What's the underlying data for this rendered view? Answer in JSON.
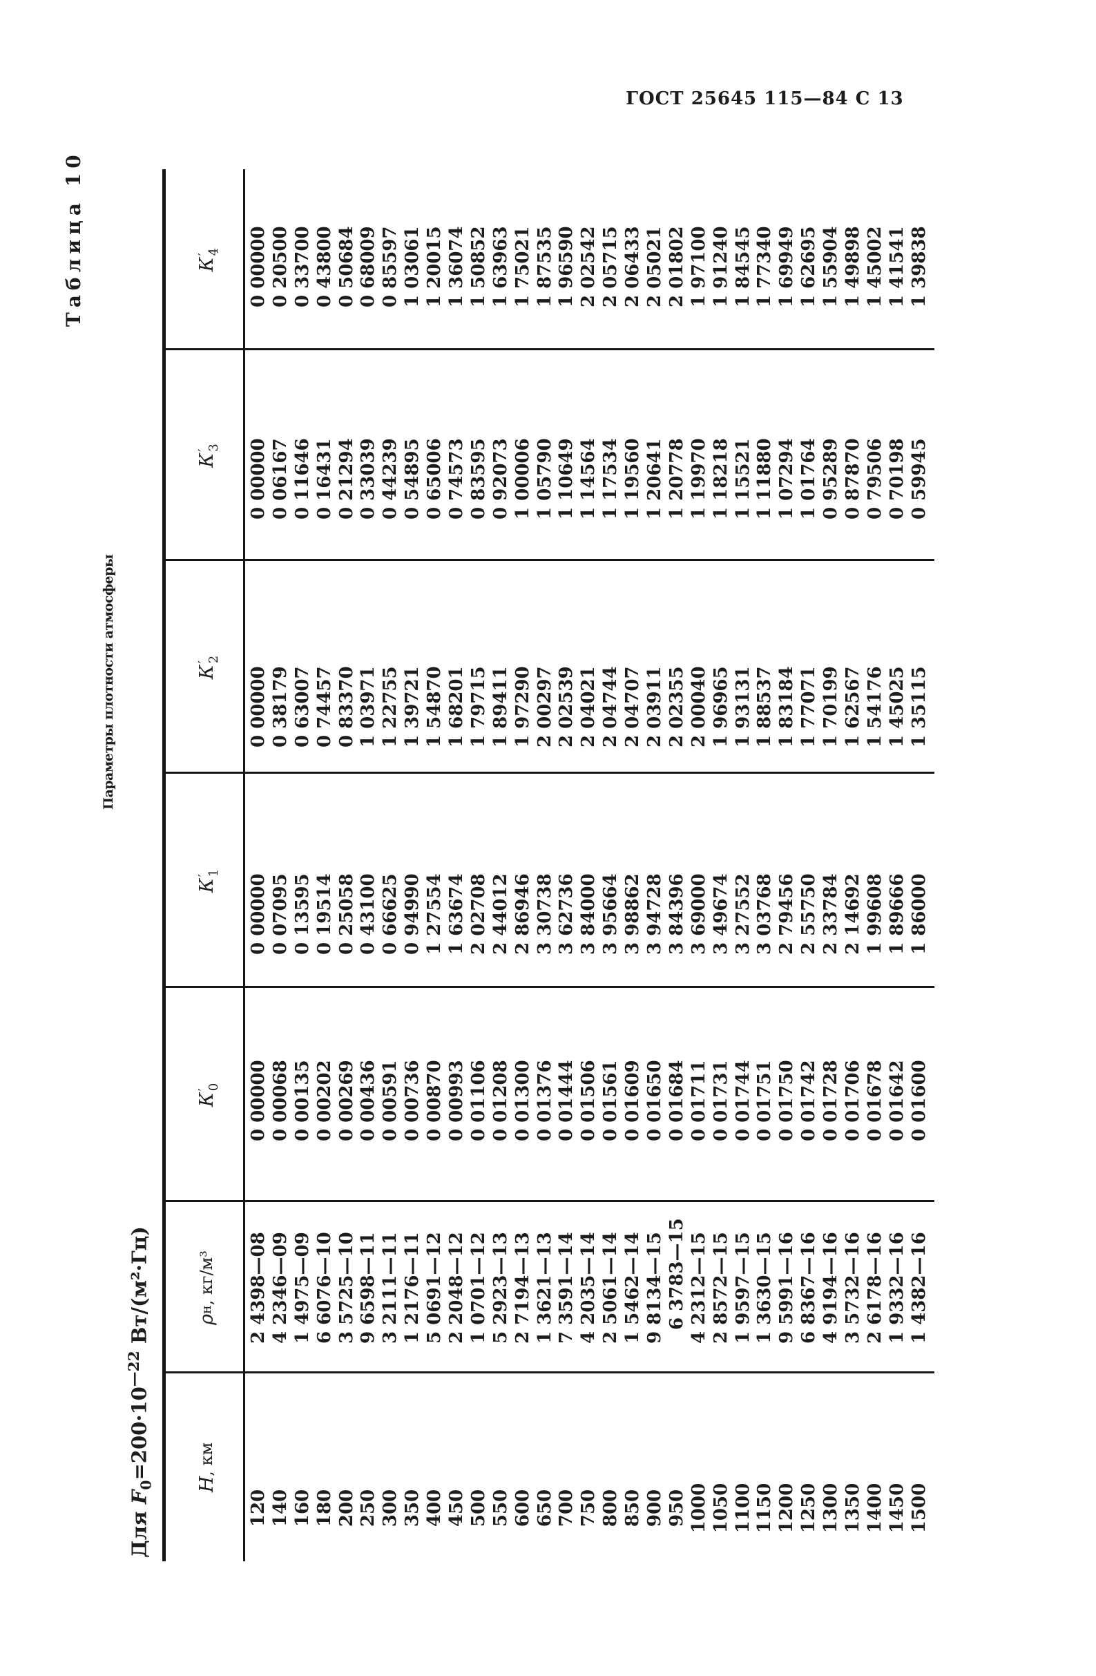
{
  "colors": {
    "paper": "#ffffff",
    "ink": "#1c1c1c"
  },
  "header": {
    "standard_ref": "ГОСТ 25645 115—84 С 13"
  },
  "table_label": "Таблица 10",
  "condition": {
    "prefix": "Для ",
    "symbol": "F",
    "symbol_sub": "0",
    "equals": "=200·10",
    "exponent": "—22",
    "unit": " Вт/(м²·Гц)"
  },
  "title": "Параметры плотности атмосферы",
  "table": {
    "columns": [
      {
        "main": "Н",
        "rest": ", км"
      },
      {
        "main": "ρ",
        "sub": "н",
        "rest": ", кг/м³"
      },
      {
        "main": "К",
        "prime": "′",
        "sub": "0"
      },
      {
        "main": "К",
        "prime": "′",
        "sub": "1"
      },
      {
        "main": "К",
        "prime": "′",
        "sub": "2"
      },
      {
        "main": "К",
        "prime": "′",
        "sub": "3"
      },
      {
        "main": "К",
        "prime": "′",
        "sub": "4"
      }
    ],
    "rows": [
      [
        "120",
        "2 4398—08",
        "0 00000",
        "0 00000",
        "0 00000",
        "0 00000",
        "0 00000"
      ],
      [
        "140",
        "4 2346—09",
        "0 00068",
        "0 07095",
        "0 38179",
        "0 06167",
        "0 20500"
      ],
      [
        "160",
        "1 4975—09",
        "0 00135",
        "0 13595",
        "0 63007",
        "0 11646",
        "0 33700"
      ],
      [
        "180",
        "6 6076—10",
        "0 00202",
        "0 19514",
        "0 74457",
        "0 16431",
        "0 43800"
      ],
      [
        "200",
        "3 5725—10",
        "0 00269",
        "0 25058",
        "0 83370",
        "0 21294",
        "0 50684"
      ],
      [
        "250",
        "9 6598—11",
        "0 00436",
        "0 43100",
        "1 03971",
        "0 33039",
        "0 68009"
      ],
      [
        "300",
        "3 2111—11",
        "0 00591",
        "0 66625",
        "1 22755",
        "0 44239",
        "0 85597"
      ],
      [
        "350",
        "1 2176—11",
        "0 00736",
        "0 94990",
        "1 39721",
        "0 54895",
        "1 03061"
      ],
      [
        "400",
        "5 0691—12",
        "0 00870",
        "1 27554",
        "1 54870",
        "0 65006",
        "1 20015"
      ],
      [
        "450",
        "2 2048—12",
        "0 00993",
        "1 63674",
        "1 68201",
        "0 74573",
        "1 36074"
      ],
      [
        "500",
        "1 0701—12",
        "0 01106",
        "2 02708",
        "1 79715",
        "0 83595",
        "1 50852"
      ],
      [
        "550",
        "5 2923—13",
        "0 01208",
        "2 44012",
        "1 89411",
        "0 92073",
        "1 63963"
      ],
      [
        "600",
        "2 7194—13",
        "0 01300",
        "2 86946",
        "1 97290",
        "1 00006",
        "1 75021"
      ],
      [
        "650",
        "1 3621—13",
        "0 01376",
        "3 30738",
        "2 00297",
        "1 05790",
        "1 87535"
      ],
      [
        "700",
        "7 3591—14",
        "0 01444",
        "3 62736",
        "2 02539",
        "1 10649",
        "1 96590"
      ],
      [
        "750",
        "4 2035—14",
        "0 01506",
        "3 84000",
        "2 04021",
        "1 14564",
        "2 02542"
      ],
      [
        "800",
        "2 5061—14",
        "0 01561",
        "3 95664",
        "2 04744",
        "1 17534",
        "2 05715"
      ],
      [
        "850",
        "1 5462—14",
        "0 01609",
        "3 98862",
        "2 04707",
        "1 19560",
        "2 06433"
      ],
      [
        "900",
        "9 8134—15",
        "0 01650",
        "3 94728",
        "2 03911",
        "1 20641",
        "2 05021"
      ],
      [
        "950",
        "6 3783—15",
        "0 01684",
        "3 84396",
        "2 02355",
        "1 20778",
        "2 01802"
      ],
      [
        "1000",
        "4 2312—15",
        "0 01711",
        "3 69000",
        "2 00040",
        "1 19970",
        "1 97100"
      ],
      [
        "1050",
        "2 8572—15",
        "0 01731",
        "3 49674",
        "1 96965",
        "1 18218",
        "1 91240"
      ],
      [
        "1100",
        "1 9597—15",
        "0 01744",
        "3 27552",
        "1 93131",
        "1 15521",
        "1 84545"
      ],
      [
        "1150",
        "1 3630—15",
        "0 01751",
        "3 03768",
        "1 88537",
        "1 11880",
        "1 77340"
      ],
      [
        "1200",
        "9 5991—16",
        "0 01750",
        "2 79456",
        "1 83184",
        "1 07294",
        "1 69949"
      ],
      [
        "1250",
        "6 8367—16",
        "0 01742",
        "2 55750",
        "1 77071",
        "1 01764",
        "1 62695"
      ],
      [
        "1300",
        "4 9194—16",
        "0 01728",
        "2 33784",
        "1 70199",
        "0 95289",
        "1 55904"
      ],
      [
        "1350",
        "3 5732—16",
        "0 01706",
        "2 14692",
        "1 62567",
        "0 87870",
        "1 49898"
      ],
      [
        "1400",
        "2 6178—16",
        "0 01678",
        "1 99608",
        "1 54176",
        "0 79506",
        "1 45002"
      ],
      [
        "1450",
        "1 9332—16",
        "0 01642",
        "1 89666",
        "1 45025",
        "0 70198",
        "1 41541"
      ],
      [
        "1500",
        "1 4382—16",
        "0 01600",
        "1 86000",
        "1 35115",
        "0 59945",
        "1 39838"
      ]
    ]
  }
}
